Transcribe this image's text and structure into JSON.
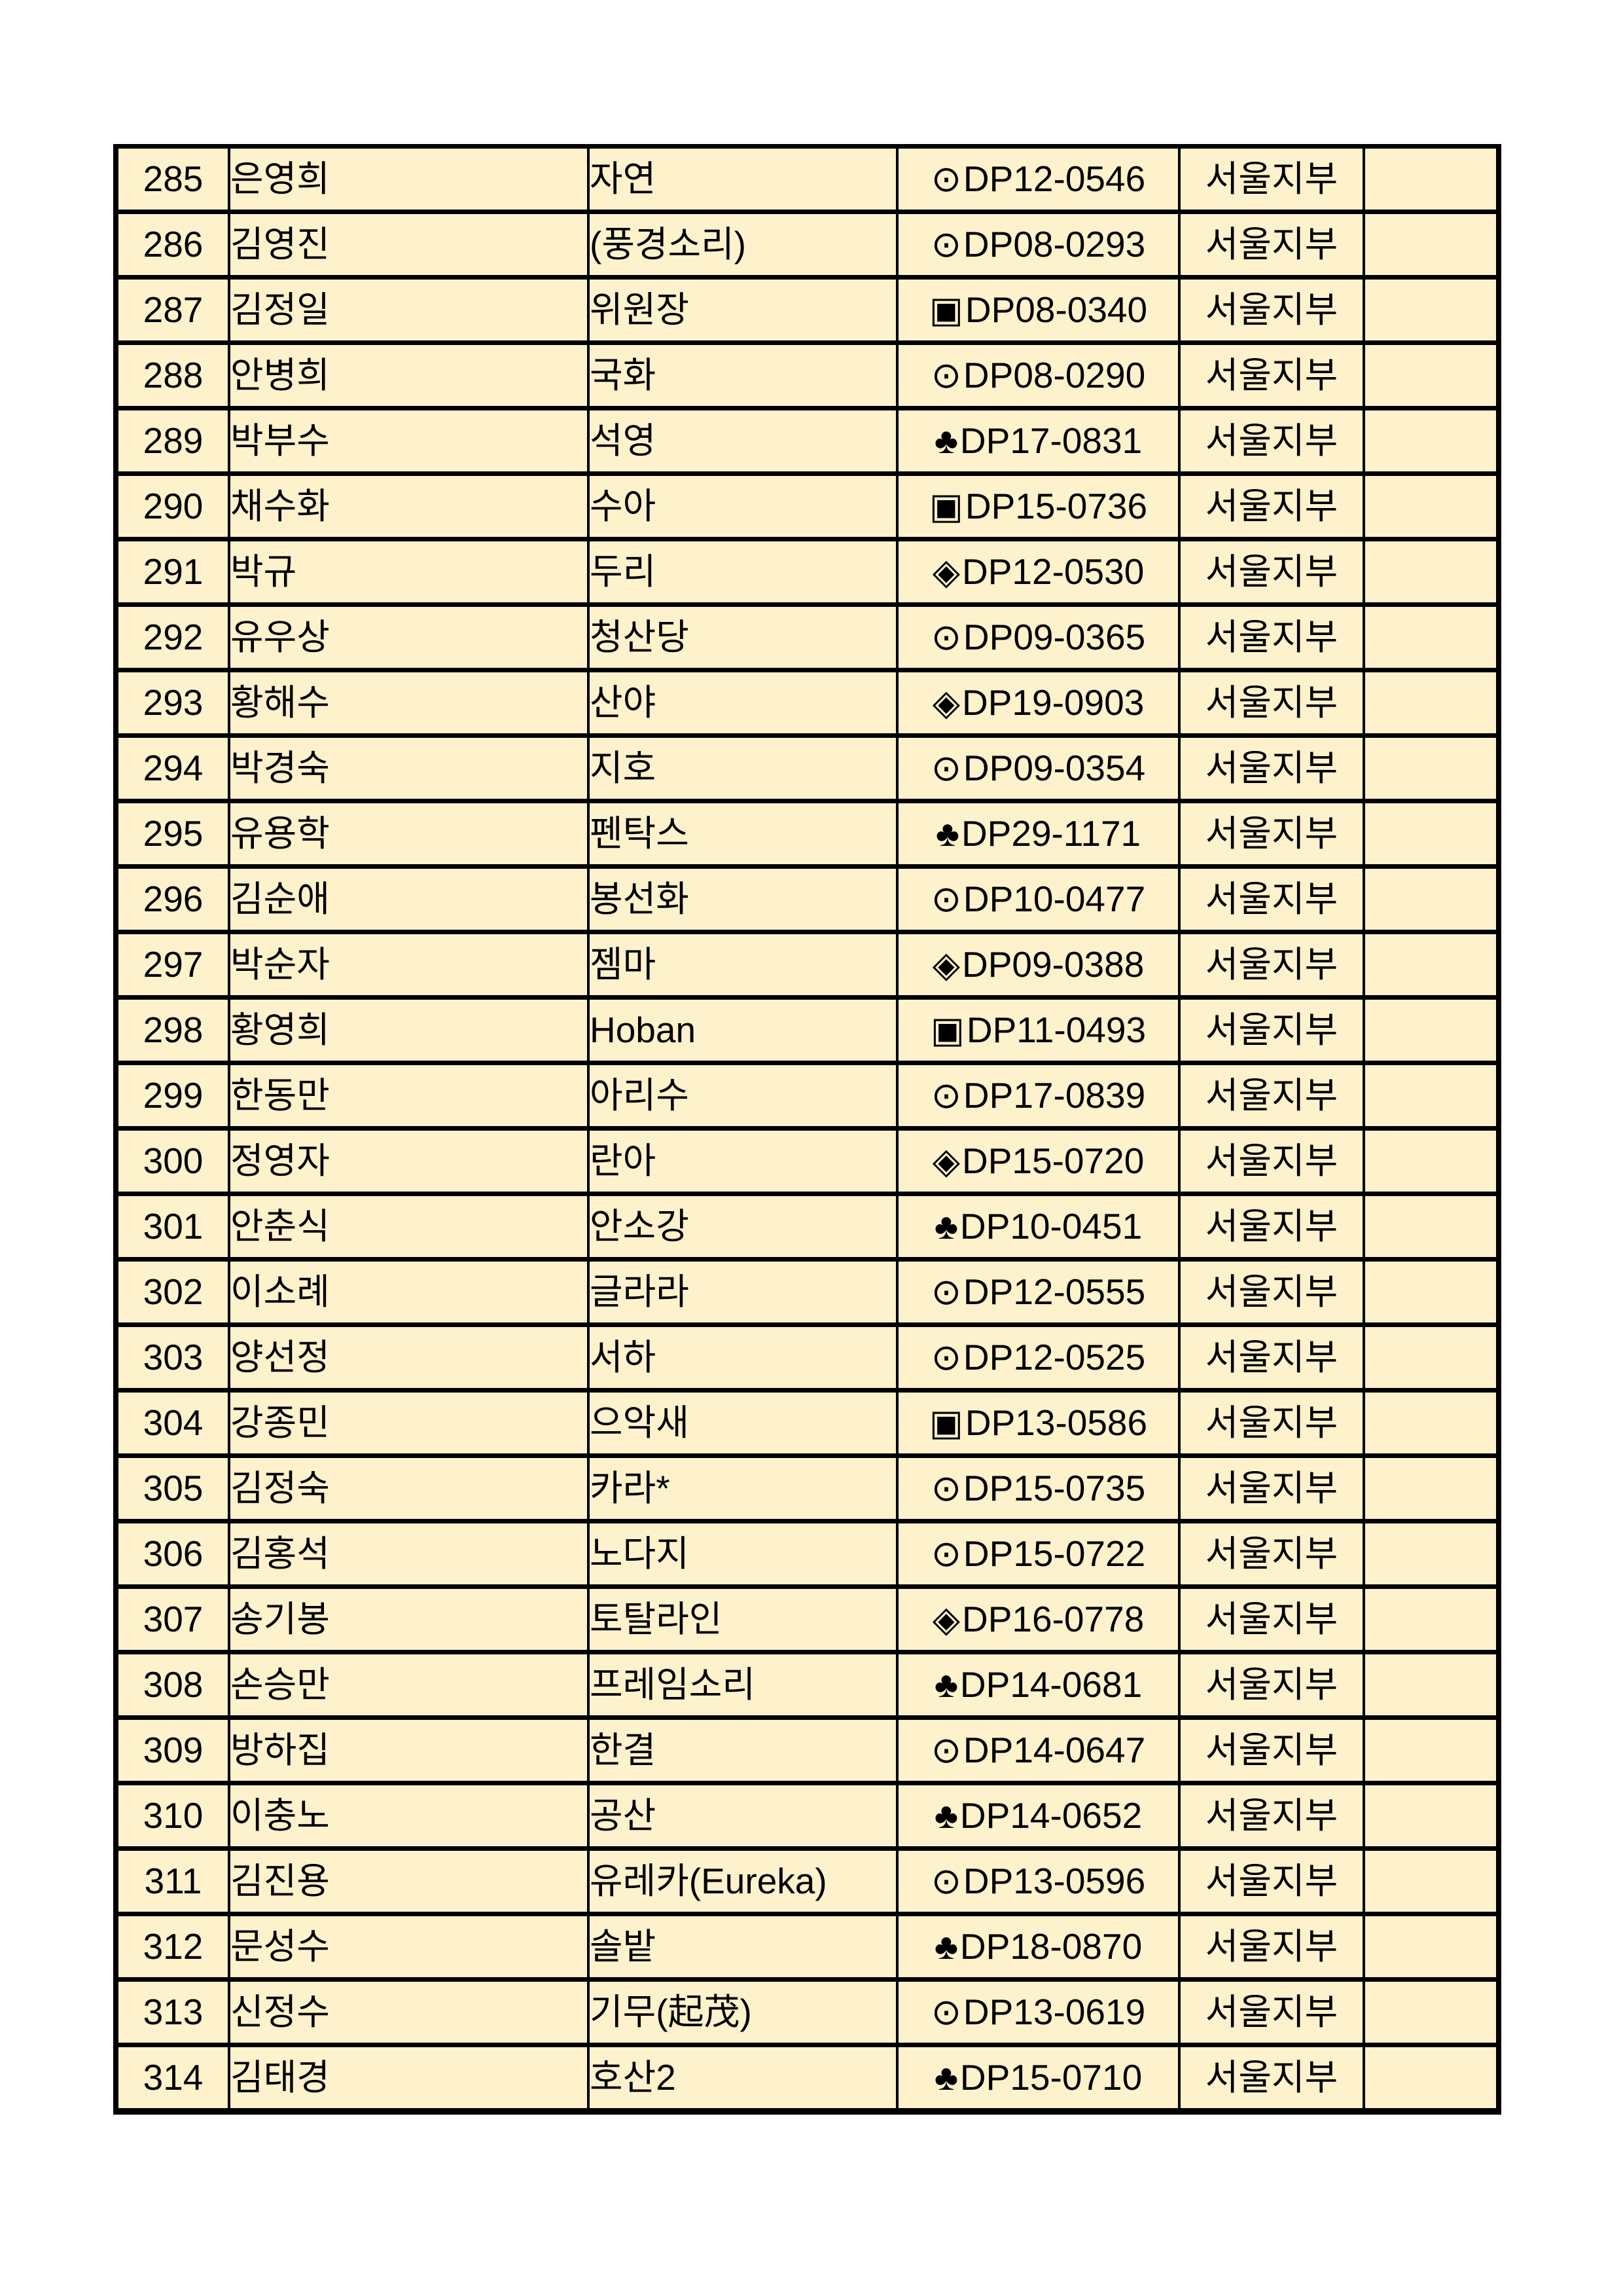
{
  "page": {
    "background_color": "#ffffff",
    "cell_background_color": "#FEF2CD",
    "border_color": "#000000",
    "text_color": "#000000"
  },
  "table": {
    "columns": [
      "no",
      "name",
      "nickname",
      "code",
      "branch",
      "note"
    ],
    "rows": [
      {
        "no": "285",
        "name": "은영희",
        "nickname": "자연",
        "symbol": "⊙",
        "code": "DP12-0546",
        "branch": "서울지부",
        "note": ""
      },
      {
        "no": "286",
        "name": "김영진",
        "nickname": "(풍경소리)",
        "symbol": "⊙",
        "code": "DP08-0293",
        "branch": "서울지부",
        "note": ""
      },
      {
        "no": "287",
        "name": "김정일",
        "nickname": "위원장",
        "symbol": "▣",
        "code": "DP08-0340",
        "branch": "서울지부",
        "note": ""
      },
      {
        "no": "288",
        "name": "안병희",
        "nickname": "국화",
        "symbol": "⊙",
        "code": "DP08-0290",
        "branch": "서울지부",
        "note": ""
      },
      {
        "no": "289",
        "name": "박부수",
        "nickname": "석영",
        "symbol": "♣",
        "code": "DP17-0831",
        "branch": "서울지부",
        "note": ""
      },
      {
        "no": "290",
        "name": "채수화",
        "nickname": "수아",
        "symbol": "▣",
        "code": "DP15-0736",
        "branch": "서울지부",
        "note": ""
      },
      {
        "no": "291",
        "name": "박규",
        "nickname": "두리",
        "symbol": "◈",
        "code": "DP12-0530",
        "branch": "서울지부",
        "note": ""
      },
      {
        "no": "292",
        "name": "유우상",
        "nickname": "청산당",
        "symbol": "⊙",
        "code": "DP09-0365",
        "branch": "서울지부",
        "note": ""
      },
      {
        "no": "293",
        "name": "황해수",
        "nickname": "산야",
        "symbol": "◈",
        "code": "DP19-0903",
        "branch": "서울지부",
        "note": ""
      },
      {
        "no": "294",
        "name": "박경숙",
        "nickname": "지호",
        "symbol": "⊙",
        "code": "DP09-0354",
        "branch": "서울지부",
        "note": ""
      },
      {
        "no": "295",
        "name": "유용학",
        "nickname": "펜탁스",
        "symbol": "♣",
        "code": "DP29-1171",
        "branch": "서울지부",
        "note": ""
      },
      {
        "no": "296",
        "name": "김순애",
        "nickname": "봉선화",
        "symbol": "⊙",
        "code": "DP10-0477",
        "branch": "서울지부",
        "note": ""
      },
      {
        "no": "297",
        "name": "박순자",
        "nickname": "젬마",
        "symbol": "◈",
        "code": "DP09-0388",
        "branch": "서울지부",
        "note": ""
      },
      {
        "no": "298",
        "name": "황영희",
        "nickname": "Hoban",
        "symbol": "▣",
        "code": "DP11-0493",
        "branch": "서울지부",
        "note": ""
      },
      {
        "no": "299",
        "name": "한동만",
        "nickname": "아리수",
        "symbol": "⊙",
        "code": "DP17-0839",
        "branch": "서울지부",
        "note": ""
      },
      {
        "no": "300",
        "name": "정영자",
        "nickname": "란아",
        "symbol": "◈",
        "code": "DP15-0720",
        "branch": "서울지부",
        "note": ""
      },
      {
        "no": "301",
        "name": "안춘식",
        "nickname": "안소강",
        "symbol": "♣",
        "code": "DP10-0451",
        "branch": "서울지부",
        "note": ""
      },
      {
        "no": "302",
        "name": "이소례",
        "nickname": "글라라",
        "symbol": "⊙",
        "code": "DP12-0555",
        "branch": "서울지부",
        "note": ""
      },
      {
        "no": "303",
        "name": "양선정",
        "nickname": "서하",
        "symbol": "⊙",
        "code": "DP12-0525",
        "branch": "서울지부",
        "note": ""
      },
      {
        "no": "304",
        "name": "강종민",
        "nickname": "으악새",
        "symbol": "▣",
        "code": "DP13-0586",
        "branch": "서울지부",
        "note": ""
      },
      {
        "no": "305",
        "name": "김정숙",
        "nickname": "카라*",
        "symbol": "⊙",
        "code": "DP15-0735",
        "branch": "서울지부",
        "note": ""
      },
      {
        "no": "306",
        "name": "김홍석",
        "nickname": "노다지",
        "symbol": "⊙",
        "code": "DP15-0722",
        "branch": "서울지부",
        "note": ""
      },
      {
        "no": "307",
        "name": "송기봉",
        "nickname": "토탈라인",
        "symbol": "◈",
        "code": "DP16-0778",
        "branch": "서울지부",
        "note": ""
      },
      {
        "no": "308",
        "name": "손승만",
        "nickname": "프레임소리",
        "symbol": "♣",
        "code": "DP14-0681",
        "branch": "서울지부",
        "note": ""
      },
      {
        "no": "309",
        "name": "방하집",
        "nickname": "한결",
        "symbol": "⊙",
        "code": "DP14-0647",
        "branch": "서울지부",
        "note": ""
      },
      {
        "no": "310",
        "name": "이충노",
        "nickname": "공산",
        "symbol": "♣",
        "code": "DP14-0652",
        "branch": "서울지부",
        "note": ""
      },
      {
        "no": "311",
        "name": "김진용",
        "nickname": "유레카(Eureka)",
        "symbol": "⊙",
        "code": "DP13-0596",
        "branch": "서울지부",
        "note": ""
      },
      {
        "no": "312",
        "name": "문성수",
        "nickname": "솔밭",
        "symbol": "♣",
        "code": "DP18-0870",
        "branch": "서울지부",
        "note": ""
      },
      {
        "no": "313",
        "name": "신정수",
        "nickname": "기무(起茂)",
        "symbol": "⊙",
        "code": "DP13-0619",
        "branch": "서울지부",
        "note": ""
      },
      {
        "no": "314",
        "name": "김태경",
        "nickname": "호산2",
        "symbol": "♣",
        "code": "DP15-0710",
        "branch": "서울지부",
        "note": ""
      }
    ]
  }
}
